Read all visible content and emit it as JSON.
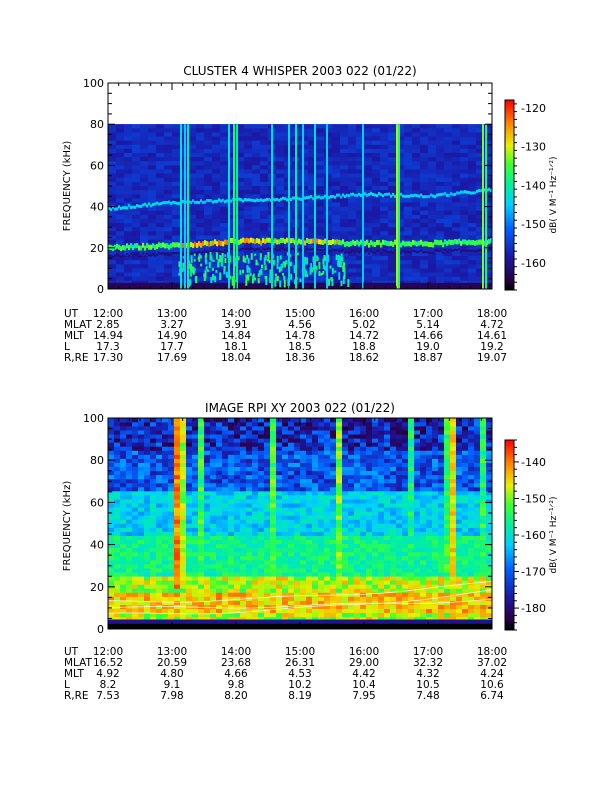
{
  "chart_data": [
    {
      "type": "heatmap",
      "title": "CLUSTER 4 WHISPER 2003 022 (01/22)",
      "ylabel": "FREQUENCY (kHz)",
      "ylim": [
        0,
        100
      ],
      "yticks": [
        "0",
        "20",
        "40",
        "60",
        "80",
        "100"
      ],
      "colorbar": {
        "label": "dB( V M⁻¹ Hz⁻¹ᐟ²)",
        "range": [
          -167,
          -118
        ],
        "ticks": [
          "-120",
          "-130",
          "-140",
          "-150",
          "-160"
        ]
      },
      "data_top_khz": 80,
      "features": {
        "upper_band_khz": [
          {
            "ut": "12:00",
            "f": 39
          },
          {
            "ut": "13:00",
            "f": 42
          },
          {
            "ut": "14:00",
            "f": 43
          },
          {
            "ut": "15:00",
            "f": 44
          },
          {
            "ut": "16:00",
            "f": 46
          },
          {
            "ut": "17:00",
            "f": 45
          },
          {
            "ut": "18:00",
            "f": 48
          }
        ],
        "lower_band_khz": [
          {
            "ut": "12:00",
            "f": 20
          },
          {
            "ut": "13:00",
            "f": 21
          },
          {
            "ut": "14:00",
            "f": 23
          },
          {
            "ut": "15:00",
            "f": 23
          },
          {
            "ut": "16:00",
            "f": 22
          },
          {
            "ut": "17:00",
            "f": 22
          },
          {
            "ut": "18:00",
            "f": 23
          }
        ]
      },
      "ephemeris": {
        "rows": [
          {
            "label": "UT",
            "values": [
              "12:00",
              "13:00",
              "14:00",
              "15:00",
              "16:00",
              "17:00",
              "18:00"
            ]
          },
          {
            "label": "MLAT",
            "values": [
              "2.85",
              "3.27",
              "3.91",
              "4.56",
              "5.02",
              "5.14",
              "4.72"
            ]
          },
          {
            "label": "MLT",
            "values": [
              "14.94",
              "14.90",
              "14.84",
              "14.78",
              "14.72",
              "14.66",
              "14.61"
            ]
          },
          {
            "label": "L",
            "values": [
              "17.3",
              "17.7",
              "18.1",
              "18.5",
              "18.8",
              "19.0",
              "19.2"
            ]
          },
          {
            "label": "R,RE",
            "values": [
              "17.30",
              "17.69",
              "18.04",
              "18.36",
              "18.62",
              "18.87",
              "19.07"
            ]
          }
        ]
      }
    },
    {
      "type": "heatmap",
      "title": "IMAGE RPI XY 2003 022 (01/22)",
      "ylabel": "FREQUENCY (kHz)",
      "ylim": [
        0,
        100
      ],
      "yticks": [
        "0",
        "20",
        "40",
        "60",
        "80",
        "100"
      ],
      "colorbar": {
        "label": "dB( V M⁻¹ Hz⁻¹ᐟ²)",
        "range": [
          -186,
          -134
        ],
        "ticks": [
          "-140",
          "-150",
          "-160",
          "-170",
          "-180"
        ]
      },
      "ephemeris": {
        "rows": [
          {
            "label": "UT",
            "values": [
              "12:00",
              "13:00",
              "14:00",
              "15:00",
              "16:00",
              "17:00",
              "18:00"
            ]
          },
          {
            "label": "MLAT",
            "values": [
              "16.52",
              "20.59",
              "23.68",
              "26.31",
              "29.00",
              "32.32",
              "37.02"
            ]
          },
          {
            "label": "MLT",
            "values": [
              "4.92",
              "4.80",
              "4.66",
              "4.53",
              "4.42",
              "4.32",
              "4.24"
            ]
          },
          {
            "label": "L",
            "values": [
              "8.2",
              "9.1",
              "9.8",
              "10.2",
              "10.4",
              "10.5",
              "10.6"
            ]
          },
          {
            "label": "R,RE",
            "values": [
              "7.53",
              "7.98",
              "8.20",
              "8.19",
              "7.95",
              "7.48",
              "6.74"
            ]
          }
        ]
      }
    }
  ]
}
